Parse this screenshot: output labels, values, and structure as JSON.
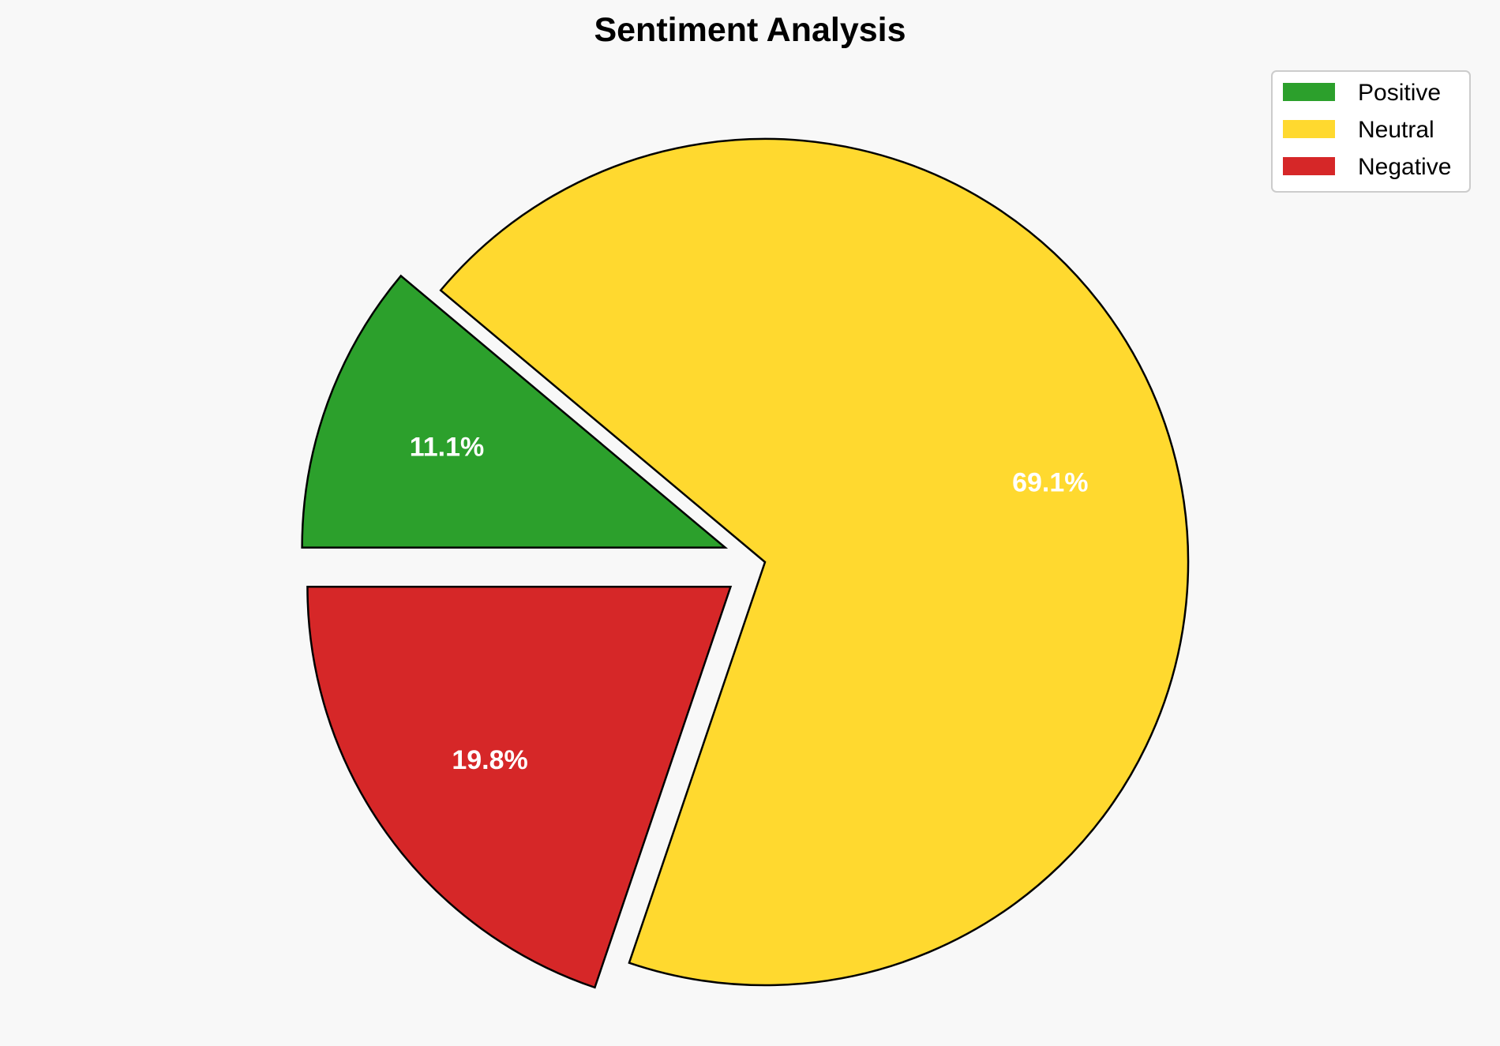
{
  "chart_data": {
    "type": "pie",
    "title": "Sentiment Analysis",
    "categories": [
      "Positive",
      "Neutral",
      "Negative"
    ],
    "values": [
      11.1,
      69.1,
      19.8
    ],
    "labels": [
      "11.1%",
      "69.1%",
      "19.8%"
    ],
    "colors": [
      "#2ca02c",
      "#ffd92f",
      "#d62728"
    ],
    "explode": [
      0.1,
      0,
      0.1
    ],
    "start_angle": 180,
    "direction": "clockwise",
    "legend_placement": "top-right",
    "background": "#f8f8f8"
  }
}
